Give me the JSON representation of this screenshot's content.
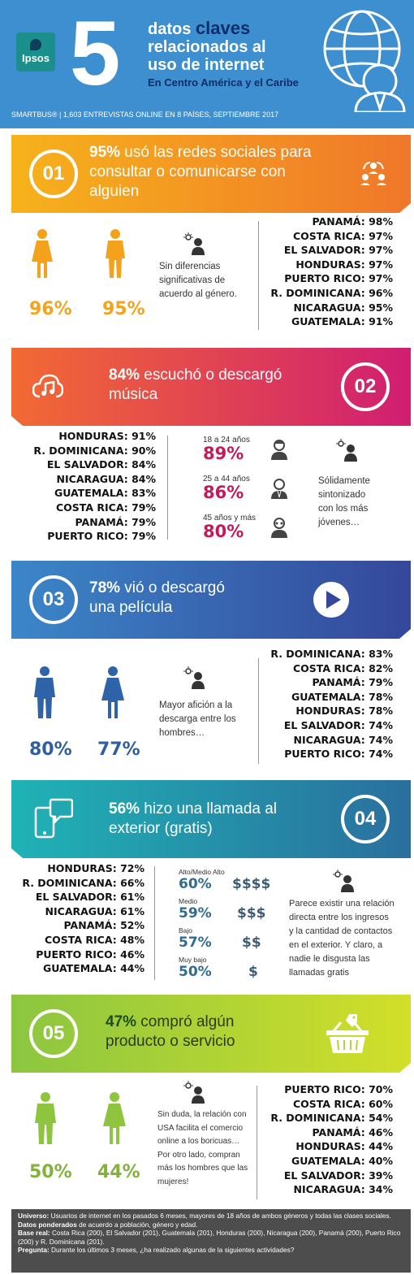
{
  "header": {
    "logo": "Ipsos",
    "big_number": "5",
    "title_line1_pre": "datos",
    "title_line1_strong": "claves",
    "title_line2": "relacionados al",
    "title_line3": "uso de internet",
    "subtitle": "En Centro América  y el Caribe",
    "smartbus": "SMARTBUS® | 1,603 ENTREVISTAS ONLINE EN 8 PAÍSES, SEPTIEMBRE 2017",
    "color": "#3d8fcf"
  },
  "sections": [
    {
      "number": "01",
      "headline_pct": "95%",
      "headline_line1": " usó las redes sociales para",
      "headline_line2": "consultar o comunicarse con",
      "headline_line3": "alguien",
      "icon": "people-cycle-icon",
      "colors": [
        "#f6b21b",
        "#f0772a"
      ],
      "gender": [
        {
          "label": "mujer",
          "pct": "96%"
        },
        {
          "label": "hombre",
          "pct": "95%"
        }
      ],
      "note": [
        "Sin diferencias",
        "significativas de",
        "acuerdo al género."
      ],
      "countries": [
        "PANAMÁ: 98%",
        "COSTA RICA: 97%",
        "EL SALVADOR: 97%",
        "HONDURAS: 97%",
        "PUERTO RICO: 97%",
        "R. DOMINICANA: 96%",
        "NICARAGUA: 95%",
        "GUATEMALA: 91%"
      ]
    },
    {
      "number": "02",
      "headline_pct": "84%",
      "headline_line1": " escuchó o descargó",
      "headline_line2": "música",
      "icon": "cloud-music-icon",
      "colors": [
        "#f26a33",
        "#d01e72"
      ],
      "countries": [
        "HONDURAS: 91%",
        "R. DOMINICANA: 90%",
        "EL SALVADOR: 84%",
        "NICARAGUA: 84%",
        "GUATEMALA: 83%",
        "COSTA RICA: 79%",
        "PANAMÁ: 79%",
        "PUERTO RICO: 79%"
      ],
      "ages": [
        {
          "label": "18 a 24 años",
          "pct": "89%"
        },
        {
          "label": "25 a 44 años",
          "pct": "86%"
        },
        {
          "label": "45 años y más",
          "pct": "80%"
        }
      ],
      "note": [
        "Sólidamente",
        "sintonizado",
        "con los más",
        "jóvenes…"
      ]
    },
    {
      "number": "03",
      "headline_pct": "78%",
      "headline_line1": " vió o descargó",
      "headline_line2": "una película",
      "icon": "play-icon",
      "colors": [
        "#3b86c8",
        "#35479b"
      ],
      "gender": [
        {
          "label": "hombre",
          "pct": "80%"
        },
        {
          "label": "mujer",
          "pct": "77%"
        }
      ],
      "note": [
        "Mayor afición a la",
        "descarga entre los",
        "hombres…"
      ],
      "countries": [
        "R. DOMINICANA: 83%",
        "COSTA RICA: 82%",
        "PANAMÁ: 79%",
        "GUATEMALA: 78%",
        "HONDURAS: 78%",
        "EL SALVADOR: 74%",
        "NICARAGUA: 74%",
        "PUERTO RICO: 74%"
      ]
    },
    {
      "number": "04",
      "headline_pct": "56%",
      "headline_line1": " hizo una llamada al",
      "headline_line2": "exterior (gratis)",
      "icon": "phone-chat-icon",
      "colors": [
        "#1fb3b5",
        "#2a6f9e"
      ],
      "countries": [
        "HONDURAS: 72%",
        "R. DOMINICANA: 66%",
        "EL SALVADOR: 61%",
        "NICARAGUA: 61%",
        "PANAMÁ: 52%",
        "COSTA RICA: 48%",
        "PUERTO RICO: 46%",
        "GUATEMALA: 44%"
      ],
      "income": [
        {
          "label": "Alto/Medio Alto",
          "pct": "60%",
          "symbol": "$$$$"
        },
        {
          "label": "Medio",
          "pct": "59%",
          "symbol": "$$$"
        },
        {
          "label": "Bajo",
          "pct": "57%",
          "symbol": "$$"
        },
        {
          "label": "Muy bajo",
          "pct": "50%",
          "symbol": "$"
        }
      ],
      "note": [
        "Parece existir una relación",
        "directa entre los ingresos",
        "y la cantidad de contactos",
        "en el exterior. Y claro, a",
        "nadie le disgusta las",
        "llamadas gratis"
      ]
    },
    {
      "number": "05",
      "headline_pct": "47%",
      "headline_line1": " compró algún",
      "headline_line2": "producto o servicio",
      "icon": "shopping-basket-icon",
      "colors": [
        "#8cc640",
        "#d2df29"
      ],
      "gender": [
        {
          "label": "hombre",
          "pct": "50%"
        },
        {
          "label": "mujer",
          "pct": "44%"
        }
      ],
      "note": [
        "Sin duda, la relación con",
        "USA facilita el comercio",
        "online a los boricuas…",
        "Por otro lado, compran",
        "más los hombres que las",
        "mujeres!"
      ],
      "countries": [
        "PUERTO RICO: 70%",
        "COSTA RICA: 60%",
        "R. DOMINICANA: 54%",
        "PANAMÁ: 46%",
        "HONDURAS: 44%",
        "GUATEMALA: 40%",
        "EL SALVADOR: 39%",
        "NICARAGUA: 34%"
      ]
    }
  ],
  "footer": {
    "universo_label": "Universo:",
    "universo_text": " Usuarios de internet en los pasados 6 meses, mayores de 18 años de ambos géneros y todas las clases sociales.",
    "ponderados_label": "Datos ponderados",
    "ponderados_text": " de acuerdo a población, género y edad.",
    "base_label": "Base real:",
    "base_text": " Costa Rica (200), El Salvador (201), Guatemala (201), Honduras (200), Nicaragua (200), Panamá (200), Puerto Rico (200) y R. Dominicana (201).",
    "pregunta_label": "Pregunta:",
    "pregunta_text": " Durante los últimos 3 meses, ¿ha realizado algunas de la siguientes actividades?"
  }
}
